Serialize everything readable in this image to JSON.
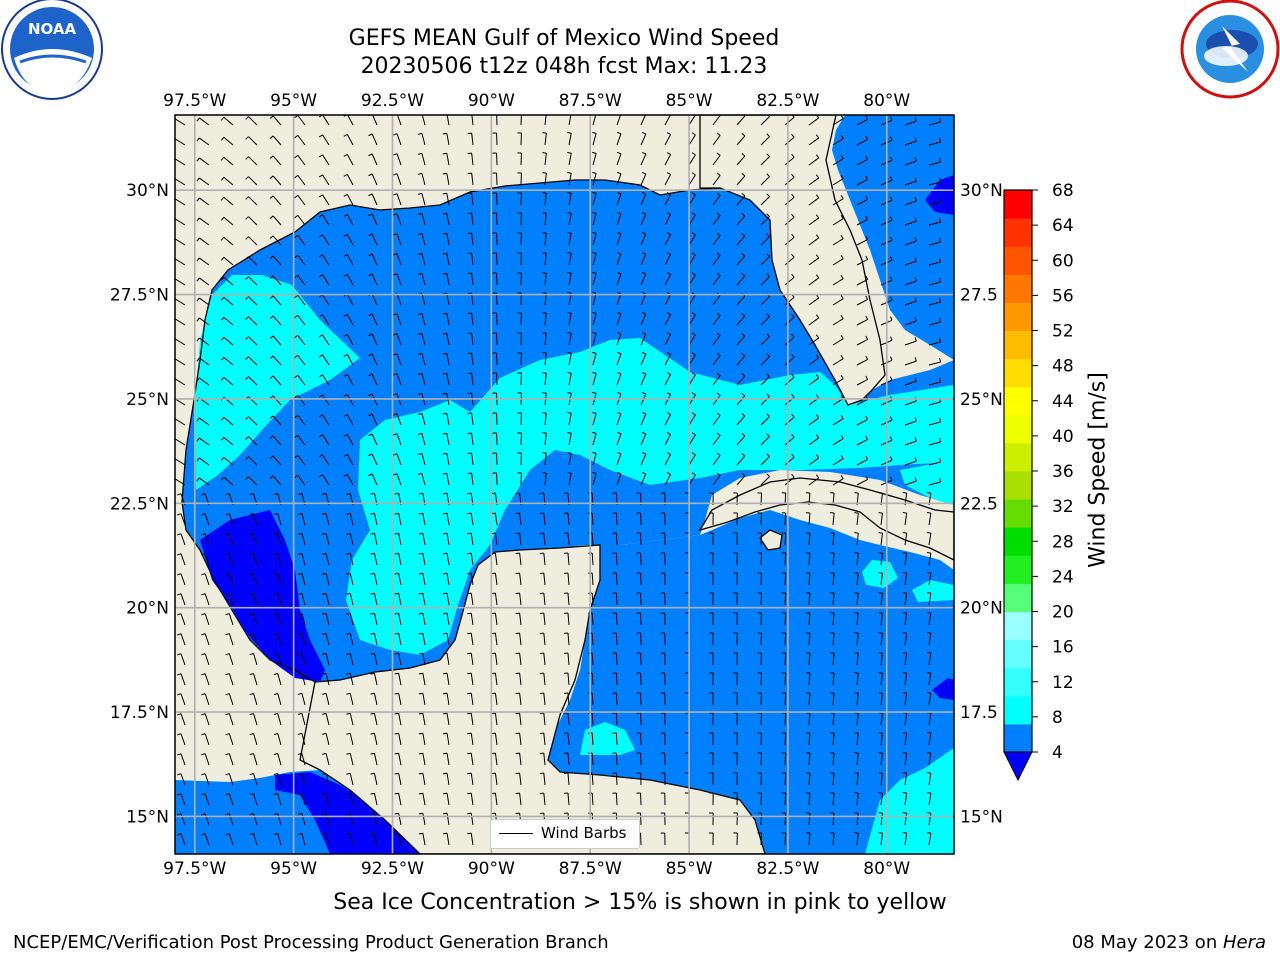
{
  "title": "GEFS MEAN Gulf of Mexico Wind Speed",
  "subtitle": "20230506 t12z 048h fcst   Max: 11.23",
  "logos": {
    "left": "noara-logo",
    "left_text": "NOAA",
    "right": "nws-logo"
  },
  "map": {
    "extent": {
      "lon": [
        -98,
        -78.3
      ],
      "lat": [
        14.1,
        31.8
      ]
    },
    "lon_ticks": [
      {
        "value": -97.5,
        "label": "97.5°W"
      },
      {
        "value": -95,
        "label": "95°W"
      },
      {
        "value": -92.5,
        "label": "92.5°W"
      },
      {
        "value": -90,
        "label": "90°W"
      },
      {
        "value": -87.5,
        "label": "87.5°W"
      },
      {
        "value": -85,
        "label": "85°W"
      },
      {
        "value": -82.5,
        "label": "82.5°W"
      },
      {
        "value": -80,
        "label": "80°W"
      }
    ],
    "lat_ticks": [
      {
        "value": 30,
        "label": "30°N"
      },
      {
        "value": 27.5,
        "label": "27.5°N"
      },
      {
        "value": 25,
        "label": "25°N"
      },
      {
        "value": 22.5,
        "label": "22.5°N"
      },
      {
        "value": 20,
        "label": "20°N"
      },
      {
        "value": 17.5,
        "label": "17.5°N"
      },
      {
        "value": 15,
        "label": "15°N"
      }
    ],
    "right_lat_labels": [
      "30°N",
      "27.5",
      "25°N",
      "22.5",
      "20°N",
      "17.5",
      "15°N"
    ],
    "colors": {
      "land": "#efedde",
      "coast": "#000000",
      "grid": "#b0b0b0"
    },
    "legend_label": "Wind Barbs"
  },
  "colorbar": {
    "title": "Wind Speed [m/s]",
    "ticks": [
      "4",
      "8",
      "12",
      "16",
      "20",
      "24",
      "28",
      "32",
      "36",
      "40",
      "44",
      "48",
      "52",
      "56",
      "60",
      "64",
      "68"
    ],
    "colors": [
      "#0080ff",
      "#00ffff",
      "#33ffff",
      "#66ffff",
      "#99ffff",
      "#55ff77",
      "#22ee22",
      "#00dd00",
      "#66dd00",
      "#aadd00",
      "#ccee00",
      "#eeff00",
      "#ffff00",
      "#ffdd00",
      "#ffbb00",
      "#ff9900",
      "#ff7700",
      "#ff5500",
      "#ff3300",
      "#ff0000"
    ],
    "under_color": "#0000ff"
  },
  "ice_note": "Sea Ice Concentration > 15% is shown in pink to yellow",
  "footer_left": "NCEP/EMC/Verification Post Processing Product Generation Branch",
  "footer_right_date": "08 May 2023 on ",
  "footer_right_host": "Hera"
}
